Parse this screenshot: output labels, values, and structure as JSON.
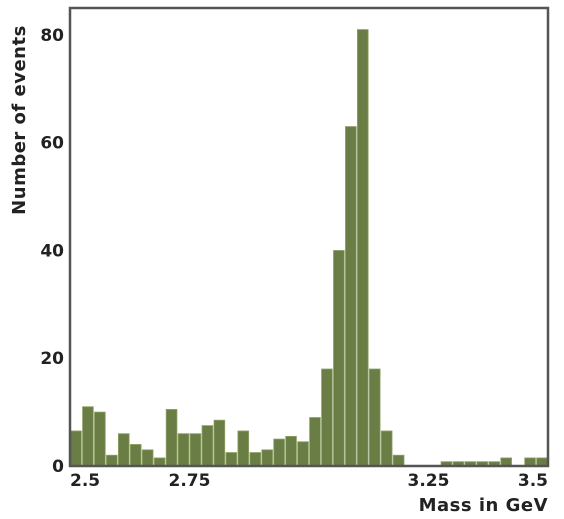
{
  "chart_data": {
    "type": "bar",
    "title": "",
    "xlabel": "Mass in GeV",
    "ylabel": "Number of events",
    "xlim": [
      2.5,
      3.5
    ],
    "ylim": [
      0,
      85
    ],
    "x_ticks": [
      2.5,
      2.75,
      3.25,
      3.5
    ],
    "x_tick_labels": [
      "2.5",
      "2.75",
      "3.25",
      "3.5"
    ],
    "y_ticks": [
      0,
      20,
      40,
      60,
      80
    ],
    "y_tick_labels": [
      "0",
      "20",
      "40",
      "60",
      "80"
    ],
    "bin_width": 0.025,
    "x": [
      2.5125,
      2.5375,
      2.5625,
      2.5875,
      2.6125,
      2.6375,
      2.6625,
      2.6875,
      2.7125,
      2.7375,
      2.7625,
      2.7875,
      2.8125,
      2.8375,
      2.8625,
      2.8875,
      2.9125,
      2.9375,
      2.9625,
      2.9875,
      3.0125,
      3.0375,
      3.0625,
      3.0875,
      3.1125,
      3.1375,
      3.1625,
      3.1875,
      3.2125,
      3.2375,
      3.2625,
      3.2875,
      3.3125,
      3.3375,
      3.3625,
      3.3875,
      3.4125,
      3.4375,
      3.4625,
      3.4875
    ],
    "values": [
      6.5,
      11,
      10,
      2,
      6,
      4,
      3,
      1.5,
      10.5,
      6,
      6,
      7.5,
      8.5,
      2.5,
      6.5,
      2.5,
      3,
      5,
      5.5,
      4.5,
      9,
      18,
      40,
      63,
      81,
      18,
      6.5,
      2,
      0,
      0,
      0,
      0.8,
      0.8,
      0.8,
      0.8,
      0.8,
      1.5,
      0,
      1.5,
      1.5
    ],
    "grid": false,
    "colors": {
      "bar_fill": "#6a7d45",
      "bar_stroke": "#8ea266",
      "frame": "#555555",
      "text": "#222222"
    }
  }
}
